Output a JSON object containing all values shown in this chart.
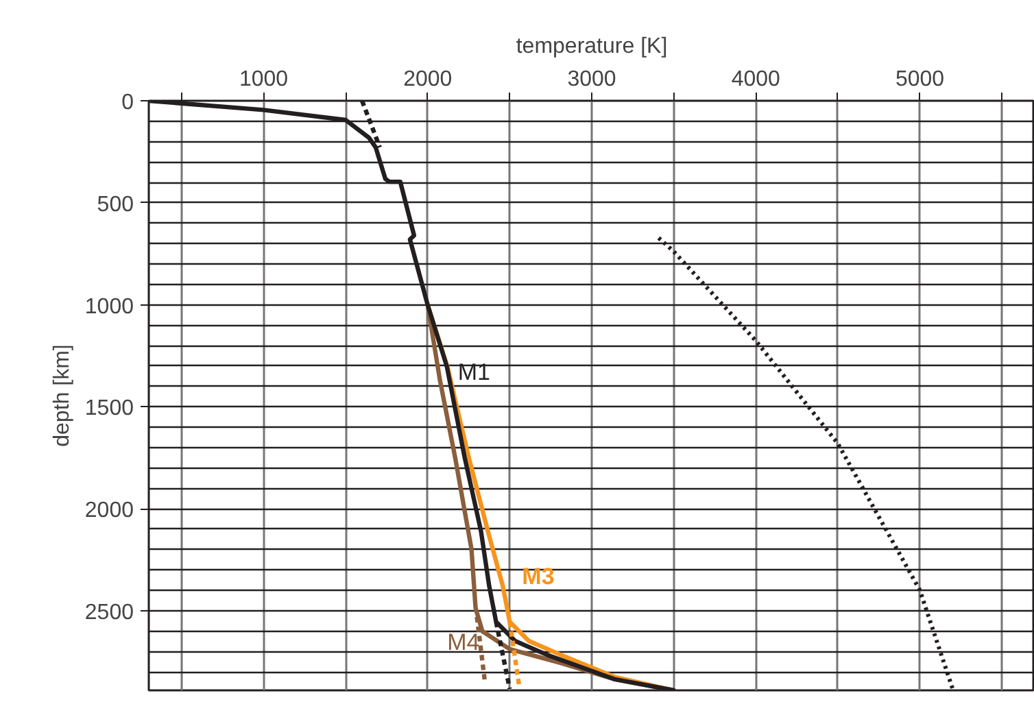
{
  "chart_data": {
    "type": "line",
    "xlabel": "temperature [K]",
    "ylabel": "depth [km]",
    "xlim": [
      300,
      5700
    ],
    "ylim": [
      2890,
      0
    ],
    "xticks": [
      {
        "value": 500,
        "label": null
      },
      1000,
      {
        "value": 1500,
        "label": null
      },
      2000,
      {
        "value": 2500,
        "label": null
      },
      3000,
      {
        "value": 3500,
        "label": null
      },
      4000,
      {
        "value": 4500,
        "label": null
      },
      5000,
      {
        "value": 5500,
        "label": null
      }
    ],
    "yticks": [
      0,
      {
        "value": 100,
        "label": null
      },
      {
        "value": 200,
        "label": null
      },
      {
        "value": 300,
        "label": null
      },
      {
        "value": 400,
        "label": null
      },
      500,
      {
        "value": 600,
        "label": null
      },
      {
        "value": 700,
        "label": null
      },
      {
        "value": 800,
        "label": null
      },
      {
        "value": 900,
        "label": null
      },
      1000,
      {
        "value": 1100,
        "label": null
      },
      {
        "value": 1200,
        "label": null
      },
      {
        "value": 1300,
        "label": null
      },
      {
        "value": 1400,
        "label": null
      },
      1500,
      {
        "value": 1600,
        "label": null
      },
      {
        "value": 1700,
        "label": null
      },
      {
        "value": 1800,
        "label": null
      },
      {
        "value": 1900,
        "label": null
      },
      2000,
      {
        "value": 2100,
        "label": null
      },
      {
        "value": 2200,
        "label": null
      },
      {
        "value": 2300,
        "label": null
      },
      {
        "value": 2400,
        "label": null
      },
      2500,
      {
        "value": 2600,
        "label": null
      },
      {
        "value": 2700,
        "label": null
      },
      {
        "value": 2800,
        "label": null
      }
    ],
    "grid": true,
    "marker": "none",
    "series": [
      {
        "name": "M4",
        "color": "#8b5e3c",
        "line_style": "solid",
        "x": [
          2000,
          2075,
          2167,
          2267,
          2292,
          2333,
          2500,
          2808,
          3142,
          3500
        ],
        "values": [
          1001,
          1371,
          1747,
          2198,
          2487,
          2600,
          2688,
          2755,
          2836,
          2890
        ]
      },
      {
        "name": "M3",
        "color": "#f7941d",
        "line_style": "solid",
        "x": [
          2000,
          2120,
          2250,
          2367,
          2458,
          2500,
          2617,
          2808,
          3142,
          3500
        ],
        "values": [
          1001,
          1303,
          1747,
          2110,
          2379,
          2554,
          2648,
          2715,
          2825,
          2890
        ]
      },
      {
        "name": "M1",
        "color": "#231f20",
        "line_style": "solid",
        "x": [
          300,
          1000,
          1500,
          1642,
          1683,
          1742,
          1767,
          1833,
          1917,
          1892,
          2000,
          2117,
          2225,
          2325,
          2375,
          2417,
          2533,
          2725,
          3142,
          3500
        ],
        "values": [
          0,
          45,
          94,
          181,
          228,
          383,
          397,
          397,
          660,
          680,
          1001,
          1303,
          1747,
          2110,
          2379,
          2554,
          2648,
          2715,
          2836,
          2890
        ]
      },
      {
        "color": "#231f20",
        "line_style": "dashed",
        "x": [
          1600,
          1708
        ],
        "values": [
          0,
          228
        ]
      },
      {
        "color": "#231f20",
        "line_style": "dashed",
        "x": [
          2417,
          2500
        ],
        "values": [
          2554,
          2883
        ]
      },
      {
        "color": "#8b5e3c",
        "line_style": "dashed",
        "x": [
          2300,
          2350
        ],
        "values": [
          2530,
          2856
        ]
      },
      {
        "color": "#f7941d",
        "line_style": "dashed",
        "x": [
          2500,
          2558
        ],
        "values": [
          2554,
          2870
        ]
      },
      {
        "color": "#231f20",
        "line_style": "dotted",
        "x": [
          3408,
          3500,
          4000,
          4500,
          5000,
          5200
        ],
        "values": [
          672,
          739,
          1176,
          1680,
          2399,
          2883
        ]
      }
    ]
  }
}
